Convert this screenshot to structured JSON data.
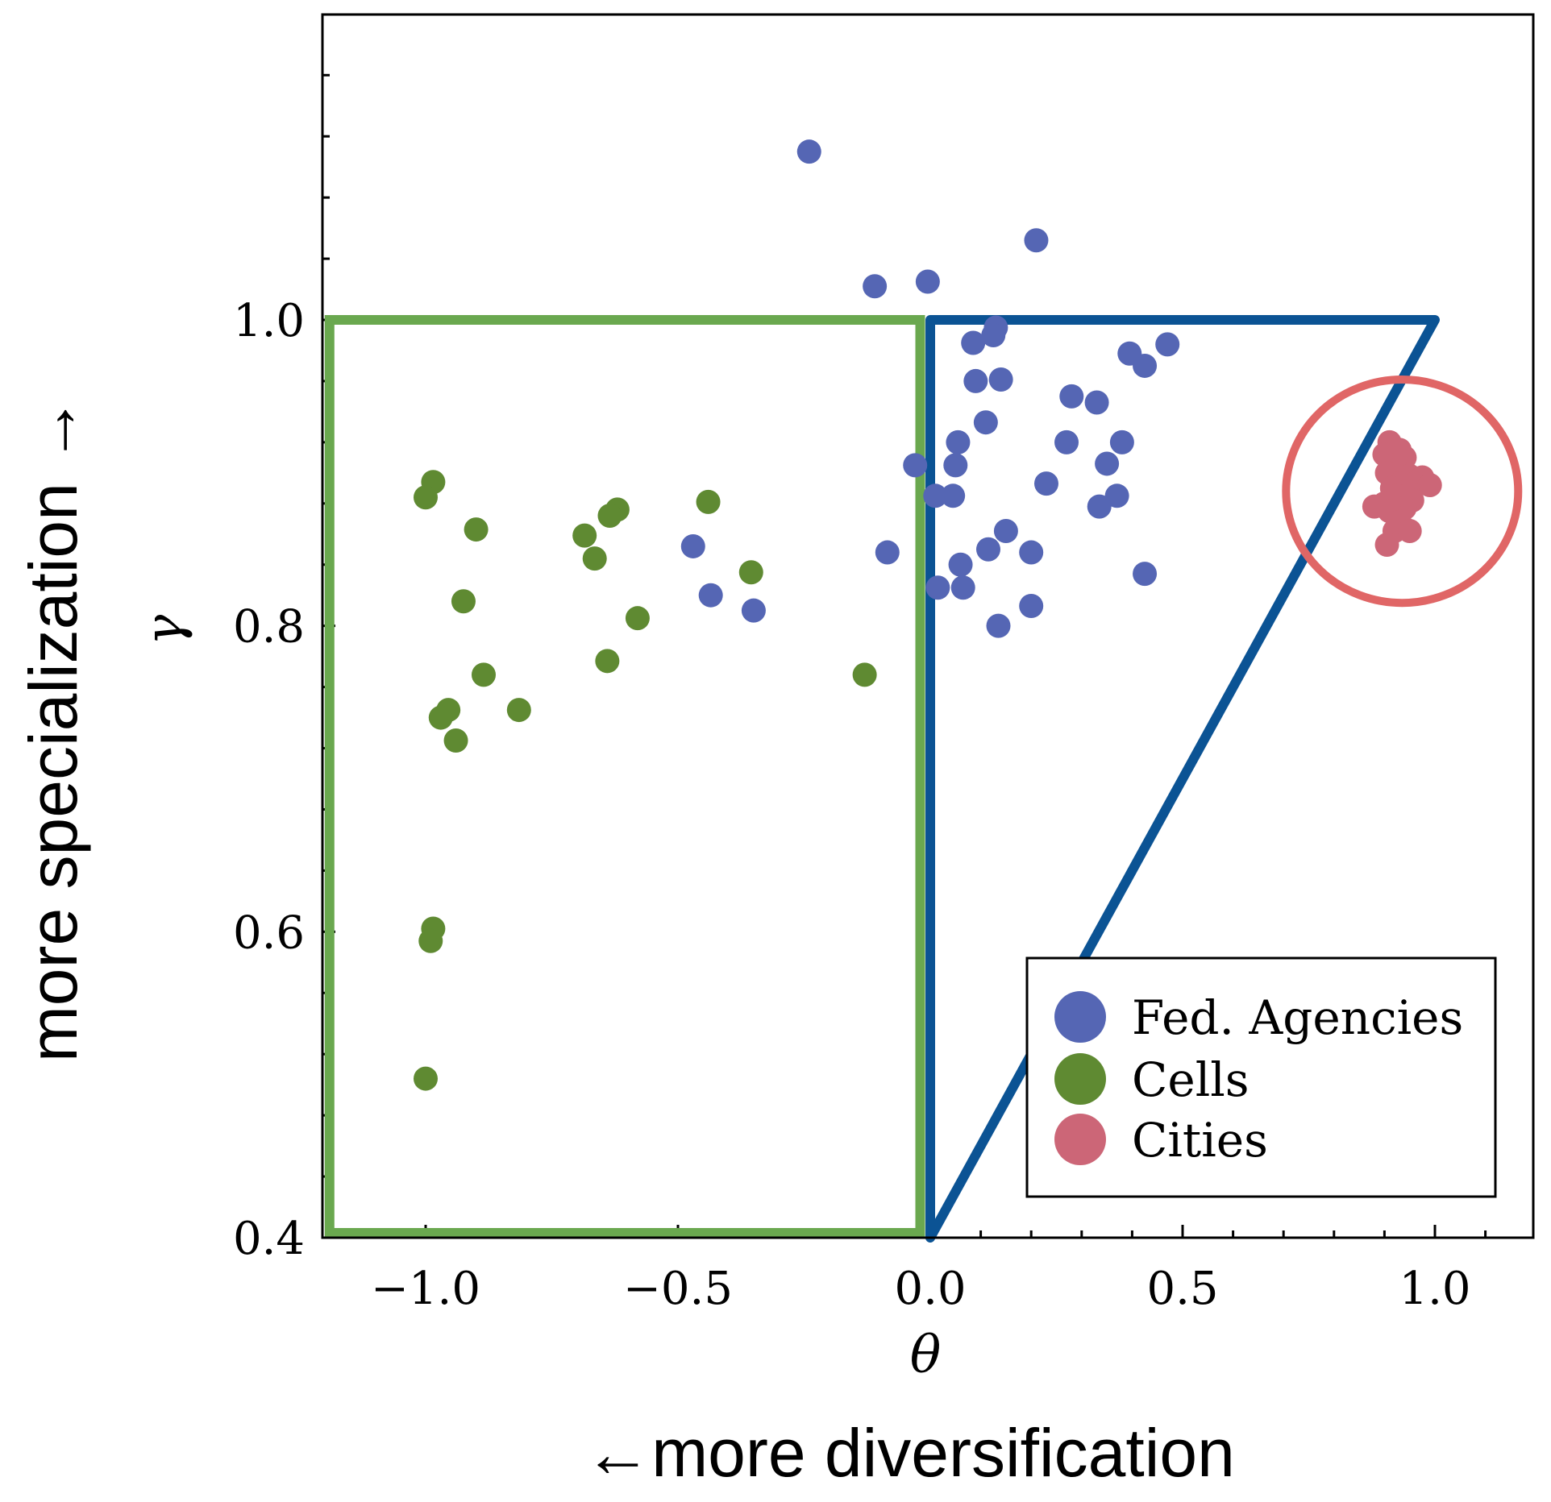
{
  "chart_data": {
    "type": "scatter",
    "xlabel": "θ",
    "ylabel": "γ",
    "outer_xlabel": "←more diversification",
    "outer_ylabel": "more specialization →",
    "xlim": [
      -1.2,
      1.2
    ],
    "ylim": [
      0.4,
      1.2
    ],
    "xticks": [
      -1.0,
      -0.5,
      0.0,
      0.5,
      1.0
    ],
    "xtick_labels": [
      "−1.0",
      "−0.5",
      "0.0",
      "0.5",
      "1.0"
    ],
    "yticks": [
      0.4,
      0.6,
      0.8,
      1.0
    ],
    "ytick_labels": [
      "0.4",
      "0.6",
      "0.8",
      "1.0"
    ],
    "grid": false,
    "legend_position": "bottom-right",
    "series": [
      {
        "name": "Fed. Agencies",
        "color": "#5566b4",
        "points": [
          [
            -0.24,
            1.11
          ],
          [
            0.21,
            1.052
          ],
          [
            -0.11,
            1.022
          ],
          [
            -0.005,
            1.025
          ],
          [
            0.13,
            0.995
          ],
          [
            0.125,
            0.99
          ],
          [
            0.085,
            0.985
          ],
          [
            0.47,
            0.984
          ],
          [
            0.395,
            0.978
          ],
          [
            0.425,
            0.97
          ],
          [
            0.09,
            0.96
          ],
          [
            0.14,
            0.961
          ],
          [
            0.28,
            0.95
          ],
          [
            0.33,
            0.946
          ],
          [
            0.11,
            0.933
          ],
          [
            0.055,
            0.92
          ],
          [
            0.27,
            0.92
          ],
          [
            0.38,
            0.92
          ],
          [
            -0.03,
            0.905
          ],
          [
            0.05,
            0.905
          ],
          [
            0.35,
            0.906
          ],
          [
            0.23,
            0.893
          ],
          [
            0.01,
            0.885
          ],
          [
            0.045,
            0.885
          ],
          [
            0.37,
            0.885
          ],
          [
            0.335,
            0.878
          ],
          [
            0.15,
            0.862
          ],
          [
            -0.47,
            0.852
          ],
          [
            0.115,
            0.85
          ],
          [
            -0.085,
            0.848
          ],
          [
            0.2,
            0.848
          ],
          [
            0.06,
            0.84
          ],
          [
            0.425,
            0.834
          ],
          [
            0.015,
            0.825
          ],
          [
            0.065,
            0.825
          ],
          [
            -0.435,
            0.82
          ],
          [
            0.2,
            0.813
          ],
          [
            -0.35,
            0.81
          ],
          [
            0.135,
            0.8
          ]
        ]
      },
      {
        "name": "Cells",
        "color": "#5f8a32",
        "points": [
          [
            -0.985,
            0.894
          ],
          [
            -1.0,
            0.884
          ],
          [
            -0.44,
            0.881
          ],
          [
            -0.62,
            0.876
          ],
          [
            -0.635,
            0.872
          ],
          [
            -0.9,
            0.863
          ],
          [
            -0.685,
            0.859
          ],
          [
            -0.665,
            0.844
          ],
          [
            -0.355,
            0.835
          ],
          [
            -0.925,
            0.816
          ],
          [
            -0.58,
            0.805
          ],
          [
            -0.64,
            0.777
          ],
          [
            -0.885,
            0.768
          ],
          [
            -0.13,
            0.768
          ],
          [
            -0.815,
            0.745
          ],
          [
            -0.955,
            0.745
          ],
          [
            -0.97,
            0.74
          ],
          [
            -0.94,
            0.725
          ],
          [
            -0.985,
            0.602
          ],
          [
            -0.99,
            0.594
          ],
          [
            -1.0,
            0.504
          ]
        ]
      },
      {
        "name": "Cities",
        "color": "#cc6677",
        "points": [
          [
            0.91,
            0.92
          ],
          [
            0.93,
            0.915
          ],
          [
            0.9,
            0.912
          ],
          [
            0.94,
            0.91
          ],
          [
            0.92,
            0.905
          ],
          [
            0.905,
            0.9
          ],
          [
            0.95,
            0.898
          ],
          [
            0.975,
            0.897
          ],
          [
            0.93,
            0.893
          ],
          [
            0.96,
            0.893
          ],
          [
            0.99,
            0.892
          ],
          [
            0.915,
            0.89
          ],
          [
            0.945,
            0.888
          ],
          [
            0.925,
            0.885
          ],
          [
            0.955,
            0.882
          ],
          [
            0.9,
            0.88
          ],
          [
            0.88,
            0.878
          ],
          [
            0.94,
            0.877
          ],
          [
            0.91,
            0.875
          ],
          [
            0.93,
            0.868
          ],
          [
            0.92,
            0.862
          ],
          [
            0.95,
            0.862
          ],
          [
            0.905,
            0.853
          ]
        ]
      }
    ],
    "overlays": [
      {
        "shape": "rectangle",
        "color": "#6aa84f",
        "x_range": [
          -1.2,
          -0.02
        ],
        "y_range": [
          0.4,
          1.0
        ]
      },
      {
        "shape": "triangle",
        "color": "#0b5394",
        "vertices": [
          [
            0.0,
            0.4
          ],
          [
            0.0,
            1.0
          ],
          [
            1.0,
            1.0
          ]
        ]
      },
      {
        "shape": "ellipse",
        "color": "#e06666",
        "center": [
          0.935,
          0.888
        ],
        "radius_x": 0.23,
        "radius_y": 0.073
      }
    ]
  }
}
